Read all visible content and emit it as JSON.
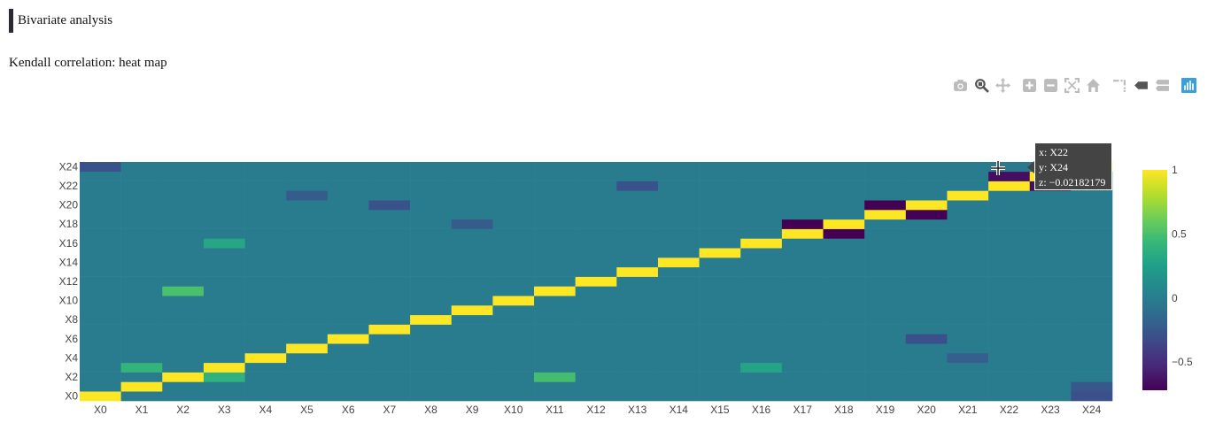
{
  "section": {
    "title": "Bivariate analysis"
  },
  "caption": "Kendall correlation: heat map",
  "modebar": {
    "icons": [
      "camera-icon",
      "zoom-icon",
      "pan-icon",
      "zoom-in-icon",
      "zoom-out-icon",
      "autoscale-icon",
      "reset-axes-icon",
      "spike-lines-icon",
      "hover-closest-icon",
      "hover-compare-icon",
      "plotly-logo-icon"
    ]
  },
  "tooltip": {
    "x": "x: X22",
    "y": "y: X24",
    "z": "z: −0.02182179"
  },
  "chart_data": {
    "type": "heatmap",
    "x": [
      "X0",
      "X1",
      "X2",
      "X3",
      "X4",
      "X5",
      "X6",
      "X7",
      "X8",
      "X9",
      "X10",
      "X11",
      "X12",
      "X13",
      "X14",
      "X15",
      "X16",
      "X17",
      "X18",
      "X19",
      "X20",
      "X21",
      "X22",
      "X23",
      "X24"
    ],
    "y": [
      "X0",
      "X1",
      "X2",
      "X3",
      "X4",
      "X5",
      "X6",
      "X7",
      "X8",
      "X9",
      "X10",
      "X11",
      "X12",
      "X13",
      "X14",
      "X15",
      "X16",
      "X17",
      "X18",
      "X19",
      "X20",
      "X21",
      "X22",
      "X23",
      "X24"
    ],
    "y_tick_labels": [
      "X0",
      "X2",
      "X4",
      "X6",
      "X8",
      "X10",
      "X12",
      "X14",
      "X16",
      "X18",
      "X20",
      "X22",
      "X24"
    ],
    "colorscale": "viridis",
    "zmin": -0.72,
    "zmax": 1,
    "colorbar_ticks": [
      {
        "v": 1,
        "label": "1"
      },
      {
        "v": 0.5,
        "label": "0.5"
      },
      {
        "v": 0,
        "label": "0"
      },
      {
        "v": -0.5,
        "label": "−0.5"
      }
    ],
    "diagonal": 1,
    "default_off_diagonal": 0,
    "off_diagonal": [
      {
        "x": "X18",
        "y": "X17",
        "z": -0.72
      },
      {
        "x": "X17",
        "y": "X18",
        "z": -0.72
      },
      {
        "x": "X19",
        "y": "X20",
        "z": -0.72
      },
      {
        "x": "X20",
        "y": "X19",
        "z": -0.72
      },
      {
        "x": "X23",
        "y": "X22",
        "z": -0.65
      },
      {
        "x": "X22",
        "y": "X23",
        "z": -0.65
      },
      {
        "x": "X22",
        "y": "X24",
        "z": -0.02182179
      },
      {
        "x": "X0",
        "y": "X24",
        "z": -0.28
      },
      {
        "x": "X2",
        "y": "X11",
        "z": 0.5
      },
      {
        "x": "X11",
        "y": "X2",
        "z": 0.48
      },
      {
        "x": "X3",
        "y": "X16",
        "z": 0.3
      },
      {
        "x": "X3",
        "y": "X2",
        "z": 0.38
      },
      {
        "x": "X1",
        "y": "X3",
        "z": 0.4
      },
      {
        "x": "X20",
        "y": "X6",
        "z": -0.3
      },
      {
        "x": "X7",
        "y": "X20",
        "z": -0.28
      },
      {
        "x": "X13",
        "y": "X22",
        "z": -0.28
      },
      {
        "x": "X24",
        "y": "X0",
        "z": -0.3
      },
      {
        "x": "X24",
        "y": "X1",
        "z": -0.25
      },
      {
        "x": "X16",
        "y": "X3",
        "z": 0.28
      },
      {
        "x": "X5",
        "y": "X21",
        "z": -0.22
      },
      {
        "x": "X21",
        "y": "X4",
        "z": -0.2
      },
      {
        "x": "X9",
        "y": "X18",
        "z": -0.22
      }
    ]
  }
}
